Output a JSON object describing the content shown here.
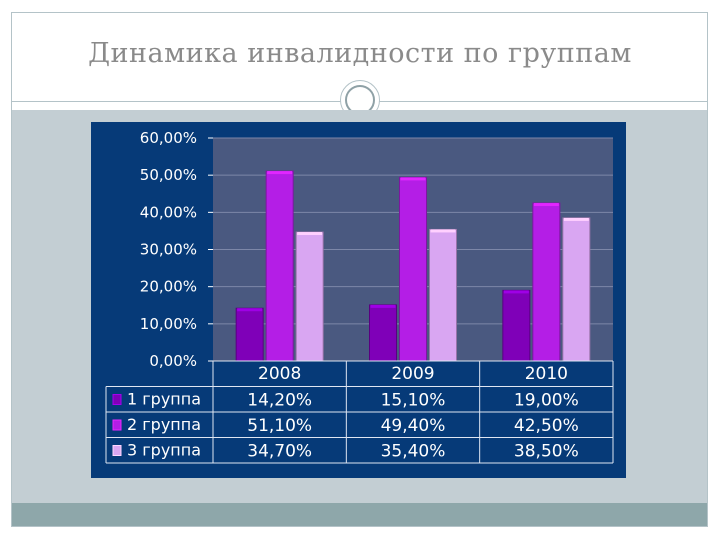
{
  "slide": {
    "title": "Динамика инвалидности по группам"
  },
  "chart_data": {
    "type": "bar",
    "title": "",
    "xlabel": "",
    "ylabel": "",
    "categories": [
      "2008",
      "2009",
      "2010"
    ],
    "ylim": [
      0,
      60
    ],
    "yticks": [
      "0,00%",
      "10,00%",
      "20,00%",
      "30,00%",
      "40,00%",
      "50,00%",
      "60,00%"
    ],
    "grid": true,
    "legend_placement": "data-table-left",
    "series": [
      {
        "name": "1 группа",
        "values": [
          14.2,
          15.1,
          19.0
        ],
        "labels": [
          "14,20%",
          "15,10%",
          "19,00%"
        ],
        "color": "#7f00b8"
      },
      {
        "name": "2 группа",
        "values": [
          51.1,
          49.4,
          42.5
        ],
        "labels": [
          "51,10%",
          "49,40%",
          "42,50%"
        ],
        "color": "#b41ee6"
      },
      {
        "name": "3 группа",
        "values": [
          34.7,
          35.4,
          38.5
        ],
        "labels": [
          "34,70%",
          "35,40%",
          "38,50%"
        ],
        "color": "#d9a6f2"
      }
    ]
  }
}
